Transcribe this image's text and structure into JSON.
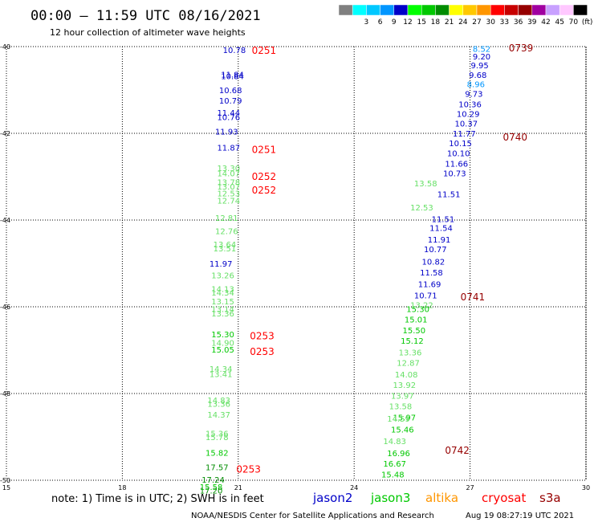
{
  "header": {
    "title": "00:00 – 11:59 UTC 08/16/2021",
    "subtitle": "12 hour collection of altimeter wave heights"
  },
  "legend": {
    "bins": [
      {
        "label": "",
        "color": "#808080"
      },
      {
        "label": "3",
        "color": "#00ffff"
      },
      {
        "label": "6",
        "color": "#00c8ff"
      },
      {
        "label": "9",
        "color": "#0096ff"
      },
      {
        "label": "12",
        "color": "#0000c8"
      },
      {
        "label": "15",
        "color": "#00ff00"
      },
      {
        "label": "18",
        "color": "#00c800"
      },
      {
        "label": "21",
        "color": "#008c00"
      },
      {
        "label": "24",
        "color": "#ffff00"
      },
      {
        "label": "27",
        "color": "#ffc800"
      },
      {
        "label": "30",
        "color": "#ff9600"
      },
      {
        "label": "33",
        "color": "#ff0000"
      },
      {
        "label": "36",
        "color": "#c80000"
      },
      {
        "label": "39",
        "color": "#960000"
      },
      {
        "label": "42",
        "color": "#a000a0"
      },
      {
        "label": "45",
        "color": "#c8a0ff"
      },
      {
        "label": "70",
        "color": "#ffc8ff"
      },
      {
        "label": "(ft)",
        "color": "#000000"
      }
    ]
  },
  "chart_data": {
    "type": "scatter",
    "xlim": [
      15,
      30
    ],
    "ylim": [
      -50,
      -40
    ],
    "xticks": [
      15,
      18,
      21,
      24,
      27,
      30
    ],
    "yticks": [
      -40,
      -42,
      -44,
      -46,
      -48,
      -50
    ],
    "grid": true,
    "series": [
      {
        "name": "jason2",
        "points": [
          {
            "x": 20.9,
            "y": -40.07,
            "v": "10.78",
            "color": "#0000c8"
          },
          {
            "x": 20.85,
            "y": -40.68,
            "v": "10.84",
            "color": "#0000c8"
          },
          {
            "x": 20.85,
            "y": -40.64,
            "v": "11.84",
            "color": "#0000c8"
          },
          {
            "x": 20.8,
            "y": -41.0,
            "v": "10.68",
            "color": "#0000c8"
          },
          {
            "x": 20.8,
            "y": -41.24,
            "v": "10.79",
            "color": "#0000c8"
          },
          {
            "x": 20.75,
            "y": -41.52,
            "v": "11.44",
            "color": "#0000c8"
          },
          {
            "x": 20.75,
            "y": -41.62,
            "v": "10.76",
            "color": "#0000c8"
          },
          {
            "x": 20.7,
            "y": -41.95,
            "v": "11.93",
            "color": "#0000c8"
          },
          {
            "x": 20.75,
            "y": -42.32,
            "v": "11.87",
            "color": "#0000c8"
          },
          {
            "x": 20.55,
            "y": -45.0,
            "v": "11.97",
            "color": "#0000c8"
          },
          {
            "x": 27.3,
            "y": -40.05,
            "v": "8.52",
            "color": "#0096ff"
          },
          {
            "x": 27.3,
            "y": -40.22,
            "v": "9.20",
            "color": "#0000c8"
          },
          {
            "x": 27.25,
            "y": -40.43,
            "v": "9.95",
            "color": "#0000c8"
          },
          {
            "x": 27.2,
            "y": -40.65,
            "v": "9.68",
            "color": "#0000c8"
          },
          {
            "x": 27.15,
            "y": -40.86,
            "v": "8.96",
            "color": "#0096ff"
          },
          {
            "x": 27.1,
            "y": -41.08,
            "v": "9.73",
            "color": "#0000c8"
          },
          {
            "x": 27.0,
            "y": -41.32,
            "v": "10.36",
            "color": "#0000c8"
          },
          {
            "x": 26.95,
            "y": -41.55,
            "v": "10.29",
            "color": "#0000c8"
          },
          {
            "x": 26.9,
            "y": -41.77,
            "v": "10.37",
            "color": "#0000c8"
          },
          {
            "x": 26.85,
            "y": -42.0,
            "v": "11.77",
            "color": "#0000c8"
          },
          {
            "x": 26.75,
            "y": -42.22,
            "v": "10.15",
            "color": "#0000c8"
          },
          {
            "x": 26.7,
            "y": -42.45,
            "v": "10.10",
            "color": "#0000c8"
          },
          {
            "x": 26.65,
            "y": -42.69,
            "v": "11.66",
            "color": "#0000c8"
          },
          {
            "x": 26.6,
            "y": -42.92,
            "v": "10.73",
            "color": "#0000c8"
          },
          {
            "x": 26.45,
            "y": -43.4,
            "v": "11.51",
            "color": "#0000c8"
          },
          {
            "x": 26.3,
            "y": -43.97,
            "v": "11.51",
            "color": "#0000c8"
          },
          {
            "x": 26.25,
            "y": -44.18,
            "v": "11.54",
            "color": "#0000c8"
          },
          {
            "x": 26.2,
            "y": -44.44,
            "v": "11.91",
            "color": "#0000c8"
          },
          {
            "x": 26.1,
            "y": -44.67,
            "v": "10.77",
            "color": "#0000c8"
          },
          {
            "x": 26.05,
            "y": -44.95,
            "v": "10.82",
            "color": "#0000c8"
          },
          {
            "x": 26.0,
            "y": -45.2,
            "v": "11.58",
            "color": "#0000c8"
          },
          {
            "x": 25.95,
            "y": -45.47,
            "v": "11.69",
            "color": "#0000c8"
          },
          {
            "x": 25.85,
            "y": -45.73,
            "v": "10.71",
            "color": "#0000c8"
          }
        ]
      },
      {
        "name": "jason3",
        "points": [
          {
            "x": 20.6,
            "y": -46.63,
            "v": "15.30",
            "color": "#00c800"
          },
          {
            "x": 20.6,
            "y": -46.98,
            "v": "15.05",
            "color": "#00c800"
          },
          {
            "x": 20.45,
            "y": -49.36,
            "v": "15.82",
            "color": "#00c800"
          },
          {
            "x": 20.45,
            "y": -49.69,
            "v": "17.57",
            "color": "#008c00"
          },
          {
            "x": 20.35,
            "y": -49.98,
            "v": "17.24",
            "color": "#008c00"
          },
          {
            "x": 20.3,
            "y": -50.15,
            "v": "15.58",
            "color": "#00c800"
          },
          {
            "x": 20.3,
            "y": -50.23,
            "v": "17.20",
            "color": "#008c00"
          },
          {
            "x": 25.65,
            "y": -46.05,
            "v": "15.30",
            "color": "#00c800"
          },
          {
            "x": 25.6,
            "y": -46.29,
            "v": "15.01",
            "color": "#00c800"
          },
          {
            "x": 25.55,
            "y": -46.54,
            "v": "15.50",
            "color": "#00c800"
          },
          {
            "x": 25.5,
            "y": -46.78,
            "v": "15.12",
            "color": "#00c800"
          },
          {
            "x": 25.3,
            "y": -48.55,
            "v": "15.97",
            "color": "#00c800"
          },
          {
            "x": 25.25,
            "y": -48.82,
            "v": "15.46",
            "color": "#00c800"
          },
          {
            "x": 25.15,
            "y": -49.37,
            "v": "16.96",
            "color": "#00c800"
          },
          {
            "x": 25.05,
            "y": -49.61,
            "v": "16.67",
            "color": "#00c800"
          },
          {
            "x": 25.0,
            "y": -49.86,
            "v": "15.48",
            "color": "#00c800"
          }
        ]
      },
      {
        "name": "jason3 (light)",
        "points": [
          {
            "x": 20.75,
            "y": -42.8,
            "v": "13.30",
            "color": "#66e066"
          },
          {
            "x": 20.75,
            "y": -42.92,
            "v": "14.07",
            "color": "#66e066"
          },
          {
            "x": 20.75,
            "y": -43.12,
            "v": "13.78",
            "color": "#66e066"
          },
          {
            "x": 20.75,
            "y": -43.22,
            "v": "13.07",
            "color": "#66e066"
          },
          {
            "x": 20.75,
            "y": -43.38,
            "v": "12.53",
            "color": "#66e066"
          },
          {
            "x": 20.75,
            "y": -43.55,
            "v": "12.74",
            "color": "#66e066"
          },
          {
            "x": 20.7,
            "y": -43.94,
            "v": "12.81",
            "color": "#66e066"
          },
          {
            "x": 20.7,
            "y": -44.25,
            "v": "12.76",
            "color": "#66e066"
          },
          {
            "x": 20.65,
            "y": -44.56,
            "v": "13.64",
            "color": "#66e066"
          },
          {
            "x": 20.65,
            "y": -44.65,
            "v": "13.51",
            "color": "#66e066"
          },
          {
            "x": 20.6,
            "y": -45.27,
            "v": "13.26",
            "color": "#66e066"
          },
          {
            "x": 20.6,
            "y": -45.58,
            "v": "14.13",
            "color": "#66e066"
          },
          {
            "x": 20.6,
            "y": -45.67,
            "v": "14.34",
            "color": "#66e066"
          },
          {
            "x": 20.6,
            "y": -45.87,
            "v": "13.15",
            "color": "#66e066"
          },
          {
            "x": 20.6,
            "y": -46.05,
            "v": "13.14",
            "color": "#66e066"
          },
          {
            "x": 20.6,
            "y": -46.15,
            "v": "13.36",
            "color": "#66e066"
          },
          {
            "x": 20.6,
            "y": -46.82,
            "v": "14.90",
            "color": "#66e066"
          },
          {
            "x": 20.55,
            "y": -47.43,
            "v": "14.34",
            "color": "#66e066"
          },
          {
            "x": 20.55,
            "y": -47.55,
            "v": "13.41",
            "color": "#66e066"
          },
          {
            "x": 20.5,
            "y": -48.15,
            "v": "14.83",
            "color": "#66e066"
          },
          {
            "x": 20.5,
            "y": -48.23,
            "v": "13.36",
            "color": "#66e066"
          },
          {
            "x": 20.5,
            "y": -48.48,
            "v": "14.37",
            "color": "#66e066"
          },
          {
            "x": 20.45,
            "y": -48.92,
            "v": "15.36",
            "color": "#66e066"
          },
          {
            "x": 20.45,
            "y": -49.0,
            "v": "15.78",
            "color": "#66e066"
          },
          {
            "x": 25.85,
            "y": -43.15,
            "v": "13.58",
            "color": "#66e066"
          },
          {
            "x": 25.75,
            "y": -43.7,
            "v": "12.53",
            "color": "#66e066"
          },
          {
            "x": 25.75,
            "y": -45.95,
            "v": "13.22",
            "color": "#66e066"
          },
          {
            "x": 25.45,
            "y": -47.05,
            "v": "13.36",
            "color": "#66e066"
          },
          {
            "x": 25.4,
            "y": -47.29,
            "v": "12.87",
            "color": "#66e066"
          },
          {
            "x": 25.35,
            "y": -47.56,
            "v": "14.08",
            "color": "#66e066"
          },
          {
            "x": 25.3,
            "y": -47.8,
            "v": "13.92",
            "color": "#66e066"
          },
          {
            "x": 25.25,
            "y": -48.05,
            "v": "13.97",
            "color": "#66e066"
          },
          {
            "x": 25.2,
            "y": -48.29,
            "v": "13.58",
            "color": "#66e066"
          },
          {
            "x": 25.15,
            "y": -48.57,
            "v": "14.59",
            "color": "#66e066"
          },
          {
            "x": 25.05,
            "y": -49.09,
            "v": "14.83",
            "color": "#66e066"
          }
        ]
      }
    ],
    "time_labels": [
      {
        "x": 21.35,
        "y": -40.07,
        "text": "0251",
        "color": "#ff0000"
      },
      {
        "x": 21.35,
        "y": -42.36,
        "text": "0251",
        "color": "#ff0000"
      },
      {
        "x": 21.35,
        "y": -42.98,
        "text": "0252",
        "color": "#ff0000"
      },
      {
        "x": 21.35,
        "y": -43.3,
        "text": "0252",
        "color": "#ff0000"
      },
      {
        "x": 21.3,
        "y": -46.66,
        "text": "0253",
        "color": "#ff0000"
      },
      {
        "x": 21.3,
        "y": -47.02,
        "text": "0253",
        "color": "#ff0000"
      },
      {
        "x": 20.95,
        "y": -49.73,
        "text": "0253",
        "color": "#ff0000"
      },
      {
        "x": 28.0,
        "y": -40.02,
        "text": "0739",
        "color": "#960000"
      },
      {
        "x": 27.85,
        "y": -42.07,
        "text": "0740",
        "color": "#960000"
      },
      {
        "x": 26.75,
        "y": -45.76,
        "text": "0741",
        "color": "#960000"
      },
      {
        "x": 26.35,
        "y": -49.3,
        "text": "0742",
        "color": "#960000"
      }
    ]
  },
  "note": {
    "text": "note: 1) Time is in UTC; 2) SWH is in feet",
    "satellites": [
      {
        "name": "jason2",
        "color": "#0000c8"
      },
      {
        "name": "jason3",
        "color": "#00c800"
      },
      {
        "name": "altika",
        "color": "#ff9600"
      },
      {
        "name": "cryosat",
        "color": "#ff0000"
      },
      {
        "name": "s3a",
        "color": "#960000"
      }
    ]
  },
  "footer": {
    "credit": "NOAA/NESDIS Center for Satellite Applications and Research",
    "timestamp": "Aug 19 08:27:19 UTC 2021"
  }
}
